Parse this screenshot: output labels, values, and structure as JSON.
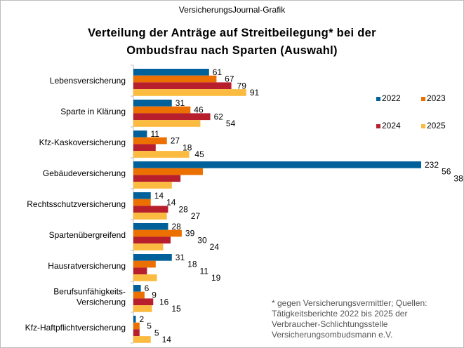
{
  "source_label": "VersicherungsJournal-Grafik",
  "footnote": "* gegen Versicherungsvermittler;  Quellen:\nTätigkeitsberichte 2022 bis 2025 der\nVerbraucher-Schlichtungsstelle\nVersicherungsombudsmann  e.V.",
  "chart_data": {
    "type": "bar",
    "orientation": "horizontal",
    "title_line1": "Verteilung der Anträge auf Streitbeilegung*  bei der",
    "title_line2": "Ombudsfrau  nach Sparten (Auswahl)",
    "categories": [
      "Lebensversicherung",
      "Sparte in Klärung",
      "Kfz-Kaskoversicherung",
      "Gebäudeversicherung",
      "Rechtsschutzversicherung",
      "Spartenübergreifend",
      "Hausratversicherung",
      "Berufsunfähigkeits-\nVersicherung",
      "Kfz-Haftpflichtversicherung"
    ],
    "series": [
      {
        "name": "2022",
        "color": "#00619a",
        "values": [
          61,
          31,
          11,
          232,
          14,
          28,
          31,
          6,
          2
        ]
      },
      {
        "name": "2023",
        "color": "#ec7000",
        "values": [
          67,
          46,
          27,
          56,
          14,
          39,
          18,
          9,
          5
        ]
      },
      {
        "name": "2024",
        "color": "#b81f2d",
        "values": [
          79,
          62,
          18,
          38,
          28,
          30,
          11,
          16,
          5
        ]
      },
      {
        "name": "2025",
        "color": "#fbbb40",
        "values": [
          91,
          54,
          45,
          31,
          27,
          24,
          19,
          15,
          14
        ]
      }
    ],
    "xlim": [
      0,
      232
    ],
    "grid": false,
    "data_labels": true,
    "legend_placement": "right"
  }
}
